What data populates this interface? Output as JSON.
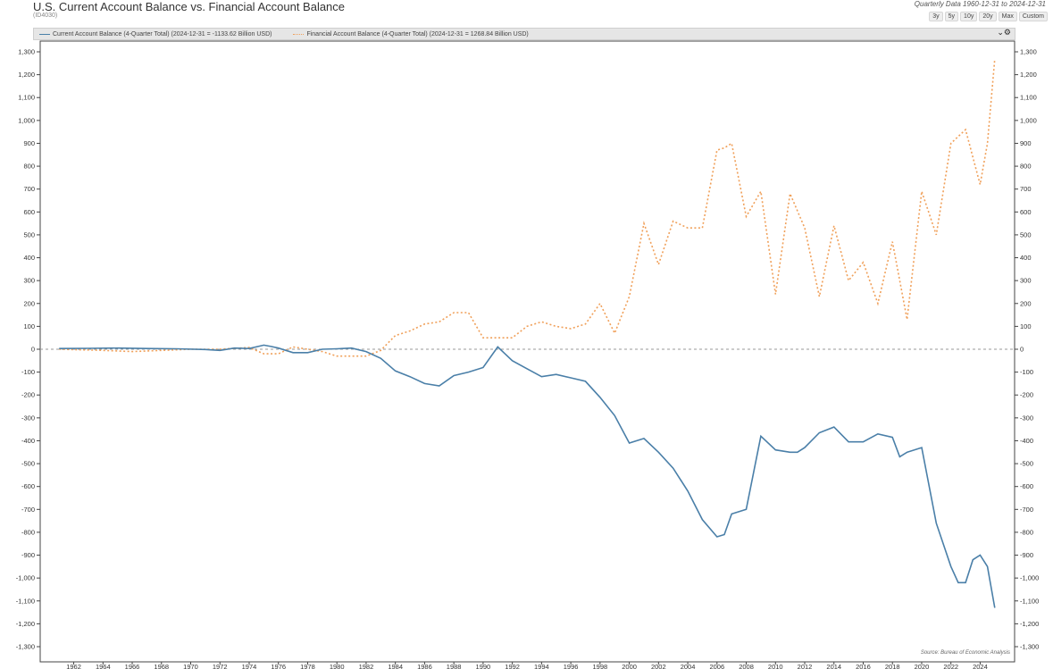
{
  "header": {
    "title": "U.S. Current Account Balance vs. Financial Account Balance",
    "subtitle": "(ID4030)",
    "date_range": "Quarterly Data 1960-12-31 to 2024-12-31",
    "range_buttons": [
      "3y",
      "5y",
      "10y",
      "20y",
      "Max",
      "Custom"
    ],
    "settings_glyph": "⌄⚙"
  },
  "footer": {
    "source": "Source:   Bureau of Economic Analysis"
  },
  "colors": {
    "current": "#4a7fa8",
    "financial": "#f0a05a",
    "zero_line": "#999999",
    "grid_box": "#444444"
  },
  "chart_data": {
    "type": "line",
    "title": "U.S. Current Account Balance vs. Financial Account Balance",
    "ylabel": "Billion USD",
    "xlim": [
      1960.5,
      2025.5
    ],
    "ylim": [
      -1300,
      1300
    ],
    "y_ticks": [
      1300,
      1200,
      1100,
      1000,
      900,
      800,
      700,
      600,
      500,
      400,
      300,
      200,
      100,
      0,
      -100,
      -200,
      -300,
      -400,
      -500,
      -600,
      -700,
      -800,
      -900,
      -1000,
      -1100,
      -1200,
      -1300
    ],
    "y_tick_labels": [
      "1,300",
      "1,200",
      "1,100",
      "1,000",
      "900",
      "800",
      "700",
      "600",
      "500",
      "400",
      "300",
      "200",
      "100",
      "0",
      "-100",
      "-200",
      "-300",
      "-400",
      "-500",
      "-600",
      "-700",
      "-800",
      "-900",
      "-1,000",
      "-1,100",
      "-1,200",
      "-1,300"
    ],
    "x_ticks": [
      "1962",
      "1964",
      "1966",
      "1968",
      "1970",
      "1972",
      "1974",
      "1976",
      "1978",
      "1980",
      "1982",
      "1984",
      "1986",
      "1988",
      "1990",
      "1992",
      "1994",
      "1996",
      "1998",
      "2000",
      "2002",
      "2004",
      "2006",
      "2008",
      "2010",
      "2012",
      "2014",
      "2016",
      "2018",
      "2020",
      "2022",
      "2024"
    ],
    "series": [
      {
        "name": "Current Account Balance (4-Quarter Total) (2024-12-31 = -1133.62 Billion USD)",
        "style": "solid",
        "x": [
          1961,
          1963,
          1965,
          1967,
          1969,
          1971,
          1972,
          1973,
          1974,
          1975,
          1975.5,
          1976,
          1977,
          1978,
          1979,
          1980,
          1981,
          1982,
          1983,
          1984,
          1985,
          1986,
          1987,
          1988,
          1989,
          1990,
          1991,
          1991.5,
          1992,
          1993,
          1994,
          1995,
          1996,
          1997,
          1998,
          1999,
          2000,
          2001,
          2002,
          2003,
          2004,
          2005,
          2006,
          2006.5,
          2007,
          2008,
          2008.5,
          2009,
          2010,
          2011,
          2011.5,
          2012,
          2013,
          2014,
          2015,
          2016,
          2017,
          2018,
          2018.5,
          2019,
          2020,
          2021,
          2022,
          2022.5,
          2023,
          2023.5,
          2024,
          2024.5,
          2025
        ],
        "values": [
          3,
          4,
          5,
          3,
          2,
          -1,
          -5,
          5,
          3,
          18,
          12,
          5,
          -15,
          -15,
          0,
          2,
          5,
          -10,
          -40,
          -95,
          -120,
          -150,
          -160,
          -115,
          -100,
          -80,
          10,
          -20,
          -50,
          -85,
          -120,
          -110,
          -125,
          -140,
          -210,
          -290,
          -410,
          -390,
          -450,
          -520,
          -620,
          -745,
          -820,
          -810,
          -720,
          -700,
          -540,
          -380,
          -440,
          -450,
          -450,
          -430,
          -365,
          -340,
          -405,
          -405,
          -370,
          -385,
          -470,
          -450,
          -430,
          -760,
          -950,
          -1020,
          -1020,
          -920,
          -900,
          -950,
          -1130
        ]
      },
      {
        "name": "Financial Account Balance (4-Quarter Total) (2024-12-31 = 1268.84 Billion USD)",
        "style": "dashed",
        "x": [
          1961,
          1964,
          1966,
          1968,
          1970,
          1972,
          1974,
          1975,
          1976,
          1977,
          1978,
          1979,
          1980,
          1981,
          1982,
          1983,
          1984,
          1985,
          1986,
          1987,
          1988,
          1989,
          1990,
          1991,
          1992,
          1993,
          1994,
          1995,
          1996,
          1997,
          1998,
          1999,
          2000,
          2001,
          2002,
          2003,
          2004,
          2005,
          2006,
          2006.5,
          2007,
          2008,
          2009,
          2010,
          2011,
          2012,
          2013,
          2014,
          2015,
          2016,
          2017,
          2018,
          2019,
          2020,
          2021,
          2022,
          2023,
          2024,
          2024.5,
          2025
        ],
        "values": [
          0,
          -5,
          -10,
          -5,
          0,
          0,
          8,
          -20,
          -20,
          10,
          0,
          -10,
          -30,
          -30,
          -30,
          -5,
          60,
          80,
          110,
          120,
          160,
          160,
          50,
          50,
          50,
          100,
          120,
          100,
          90,
          110,
          200,
          70,
          230,
          550,
          370,
          560,
          530,
          530,
          870,
          880,
          900,
          580,
          690,
          240,
          680,
          530,
          230,
          540,
          300,
          380,
          200,
          470,
          130,
          690,
          500,
          900,
          960,
          720,
          900,
          1268.84
        ]
      }
    ]
  }
}
